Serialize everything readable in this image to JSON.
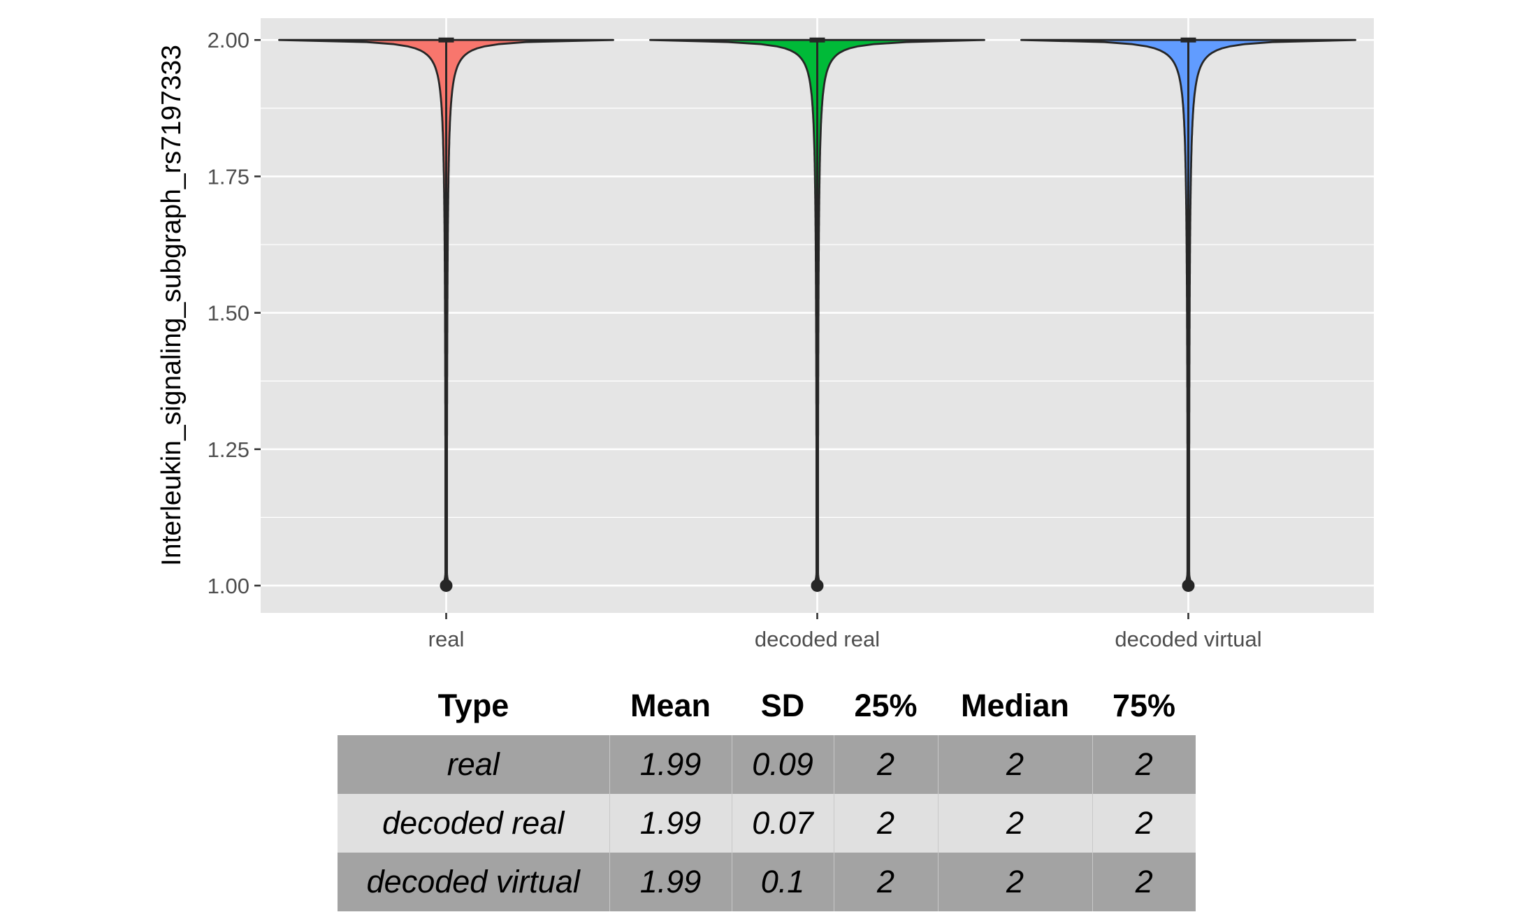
{
  "chart_data": {
    "type": "violin",
    "categories": [
      "real",
      "decoded real",
      "decoded virtual"
    ],
    "ylabel": "Interleukin_signaling_subgraph_rs7197333",
    "xlabel": "",
    "ylim": [
      0.95,
      2.04
    ],
    "yticks": [
      "1.00",
      "1.25",
      "1.50",
      "1.75",
      "2.00"
    ],
    "grid": true,
    "series": [
      {
        "category": "real",
        "color": "#F8766D",
        "min": 1.0,
        "max": 2.0,
        "median": 2.0,
        "q1": 2.0,
        "q3": 2.0,
        "mean": 1.99,
        "sd": 0.09
      },
      {
        "category": "decoded real",
        "color": "#00BA38",
        "min": 1.0,
        "max": 2.0,
        "median": 2.0,
        "q1": 2.0,
        "q3": 2.0,
        "mean": 1.99,
        "sd": 0.07
      },
      {
        "category": "decoded virtual",
        "color": "#619CFF",
        "min": 1.0,
        "max": 2.0,
        "median": 2.0,
        "q1": 2.0,
        "q3": 2.0,
        "mean": 1.99,
        "sd": 0.1
      }
    ]
  },
  "table": {
    "headers": [
      "Type",
      "Mean",
      "SD",
      "25%",
      "Median",
      "75%"
    ],
    "rows": [
      [
        "real",
        "1.99",
        "0.09",
        "2",
        "2",
        "2"
      ],
      [
        "decoded real",
        "1.99",
        "0.07",
        "2",
        "2",
        "2"
      ],
      [
        "decoded virtual",
        "1.99",
        "0.1",
        "2",
        "2",
        "2"
      ]
    ]
  }
}
